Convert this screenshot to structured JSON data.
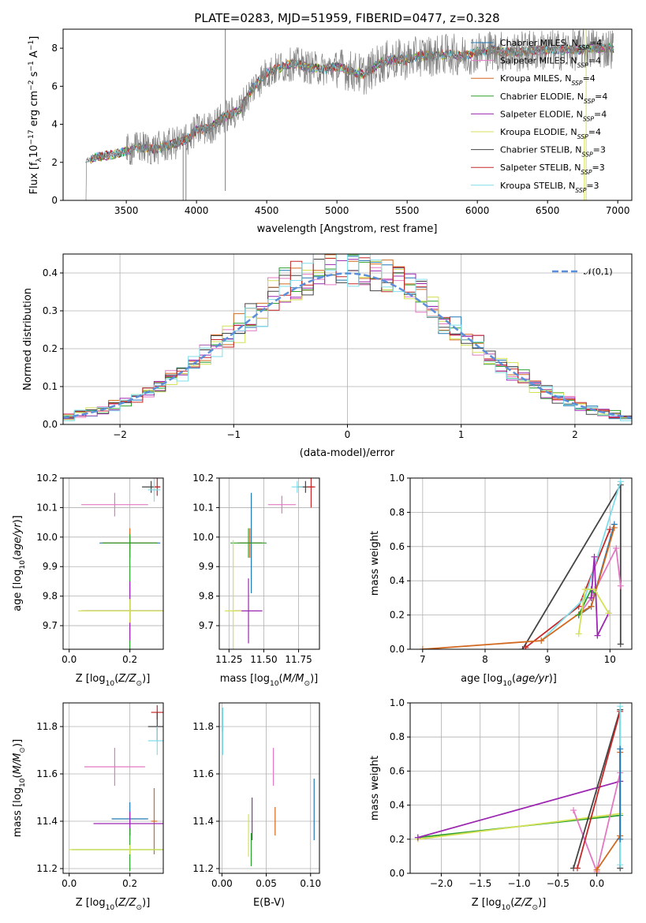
{
  "colors": {
    "chabrier_miles": "#1f77b4",
    "salpeter_miles": "#e377c2",
    "kroupa_miles": "#d2691e",
    "chabrier_elodie": "#2ca02c",
    "salpeter_elodie": "#9c27b0",
    "kroupa_elodie": "#d4e157",
    "chabrier_stelib": "#444444",
    "salpeter_stelib": "#c62828",
    "kroupa_stelib": "#80deea",
    "data": "#808080",
    "normal": "#5b8fd9"
  },
  "chart_data": [
    {
      "id": "spectrum",
      "type": "line",
      "title": "PLATE=0283, MJD=51959, FIBERID=0477, z=0.328",
      "xlabel": "wavelength [Angstrom, rest frame]",
      "ylabel": "Flux [f_λ 10^-17 erg cm^-2 s^-1 A^-1]",
      "xlim": [
        3050,
        7100
      ],
      "ylim": [
        0,
        9
      ],
      "xticks": [
        "3500",
        "4000",
        "4500",
        "5000",
        "5500",
        "6000",
        "6500",
        "7000"
      ],
      "yticks": [
        "0",
        "2",
        "4",
        "6",
        "8"
      ],
      "grid": false,
      "legend_position": "top-right",
      "legend": [
        "Chabrier MILES, N_SSP=4",
        "Salpeter MILES, N_SSP=4",
        "Kroupa MILES, N_SSP=4",
        "Chabrier ELODIE, N_SSP=4",
        "Salpeter ELODIE, N_SSP=4",
        "Kroupa ELODIE, N_SSP=4",
        "Chabrier STELIB, N_SSP=3",
        "Salpeter STELIB, N_SSP=3",
        "Kroupa STELIB, N_SSP=3"
      ],
      "data_range": [
        3210,
        6970
      ],
      "continuum": [
        [
          3210,
          2.1
        ],
        [
          3300,
          2.3
        ],
        [
          3400,
          2.4
        ],
        [
          3500,
          2.6
        ],
        [
          3600,
          2.8
        ],
        [
          3700,
          2.7
        ],
        [
          3800,
          2.9
        ],
        [
          3900,
          3.1
        ],
        [
          3950,
          3.3
        ],
        [
          4000,
          3.7
        ],
        [
          4100,
          3.8
        ],
        [
          4200,
          4.4
        ],
        [
          4300,
          4.7
        ],
        [
          4400,
          5.9
        ],
        [
          4500,
          6.7
        ],
        [
          4600,
          7.0
        ],
        [
          4700,
          7.2
        ],
        [
          4800,
          7.0
        ],
        [
          4900,
          6.9
        ],
        [
          5000,
          7.0
        ],
        [
          5100,
          6.8
        ],
        [
          5200,
          6.6
        ],
        [
          5300,
          7.2
        ],
        [
          5400,
          7.4
        ],
        [
          5500,
          7.4
        ],
        [
          5600,
          7.6
        ],
        [
          5700,
          7.6
        ],
        [
          5800,
          7.7
        ],
        [
          5900,
          7.6
        ],
        [
          6000,
          7.8
        ],
        [
          6100,
          7.9
        ],
        [
          6200,
          7.8
        ],
        [
          6300,
          7.8
        ],
        [
          6400,
          7.9
        ],
        [
          6500,
          7.9
        ],
        [
          6600,
          7.9
        ],
        [
          6700,
          7.9
        ],
        [
          6800,
          8.0
        ],
        [
          6970,
          8.0
        ]
      ]
    },
    {
      "id": "residuals",
      "type": "line",
      "xlabel": "(data-model)/error",
      "ylabel": "Normed distribution",
      "xlim": [
        -2.5,
        2.5
      ],
      "ylim": [
        0,
        0.45
      ],
      "xticks": [
        "−2",
        "−1",
        "0",
        "1",
        "2"
      ],
      "yticks": [
        "0.0",
        "0.1",
        "0.2",
        "0.3",
        "0.4"
      ],
      "grid": true,
      "legend_position": "top-right",
      "legend": [
        "𝒩(0,1)"
      ],
      "bin_width": 0.1
    },
    {
      "id": "age_vs_Z",
      "type": "scatter",
      "xlabel": "Z [log10(Z/Z⊙)]",
      "ylabel": "age  [log10(age/yr)]",
      "xlim": [
        -0.02,
        0.31
      ],
      "ylim": [
        9.62,
        10.2
      ],
      "xticks": [
        "0.0",
        "0.2"
      ],
      "yticks": [
        "9.7",
        "9.8",
        "9.9",
        "10.0",
        "10.1",
        "10.2"
      ],
      "grid": true,
      "points": [
        {
          "x": 0.27,
          "y": 10.17,
          "xerr": 0.03,
          "yerr": 0.02,
          "model": "chabrier_stelib"
        },
        {
          "x": 0.29,
          "y": 10.17,
          "xerr": 0.01,
          "yerr": 0.03,
          "model": "salpeter_stelib"
        },
        {
          "x": 0.28,
          "y": 10.16,
          "xerr": 0.02,
          "yerr": 0.04,
          "model": "kroupa_stelib"
        },
        {
          "x": 0.15,
          "y": 10.11,
          "xerr": 0.11,
          "yerr": 0.04,
          "model": "salpeter_miles"
        },
        {
          "x": 0.2,
          "y": 9.98,
          "xerr": 0.1,
          "yerr": 0.02,
          "model": "chabrier_miles"
        },
        {
          "x": 0.2,
          "y": 9.98,
          "xerr": 0.09,
          "yerr": 0.05,
          "model": "kroupa_miles"
        },
        {
          "x": 0.2,
          "y": 9.98,
          "xerr": 0.09,
          "yerr": 0.03,
          "model": "chabrier_elodie"
        },
        {
          "x": 0.2,
          "y": 9.75,
          "xerr": 0.15,
          "yerr": 0.2,
          "model": "chabrier_elodie"
        },
        {
          "x": 0.2,
          "y": 9.75,
          "xerr": 0.16,
          "yerr": 0.1,
          "model": "salpeter_elodie"
        },
        {
          "x": 0.2,
          "y": 9.75,
          "xerr": 0.17,
          "yerr": 0.04,
          "model": "kroupa_elodie"
        }
      ]
    },
    {
      "id": "age_vs_mass",
      "type": "scatter",
      "xlabel": "mass [log10(M/M⊙)]",
      "ylabel": "",
      "xlim": [
        11.18,
        11.9
      ],
      "ylim": [
        9.62,
        10.2
      ],
      "xticks": [
        "11.25",
        "11.50",
        "11.75"
      ],
      "yticks": [
        "9.7",
        "9.8",
        "9.9",
        "10.0",
        "10.1",
        "10.2"
      ],
      "grid": true,
      "points": [
        {
          "x": 11.8,
          "y": 10.17,
          "xerr": 0.06,
          "yerr": 0.02,
          "model": "chabrier_stelib"
        },
        {
          "x": 11.84,
          "y": 10.17,
          "xerr": 0.03,
          "yerr": 0.07,
          "model": "salpeter_stelib"
        },
        {
          "x": 11.74,
          "y": 10.17,
          "xerr": 0.04,
          "yerr": 0.02,
          "model": "kroupa_stelib"
        },
        {
          "x": 11.63,
          "y": 10.11,
          "xerr": 0.1,
          "yerr": 0.03,
          "model": "salpeter_miles"
        },
        {
          "x": 11.41,
          "y": 9.98,
          "xerr": 0.08,
          "yerr": 0.17,
          "model": "chabrier_miles"
        },
        {
          "x": 11.4,
          "y": 9.98,
          "xerr": 0.09,
          "yerr": 0.05,
          "model": "kroupa_miles"
        },
        {
          "x": 11.39,
          "y": 9.98,
          "xerr": 0.13,
          "yerr": 0.05,
          "model": "chabrier_elodie"
        },
        {
          "x": 11.39,
          "y": 9.75,
          "xerr": 0.1,
          "yerr": 0.11,
          "model": "salpeter_elodie"
        },
        {
          "x": 11.28,
          "y": 9.75,
          "xerr": 0.06,
          "yerr": 0.24,
          "model": "kroupa_elodie"
        }
      ]
    },
    {
      "id": "massweight_vs_age",
      "type": "line",
      "xlabel": "age  [log10(age/yr)]",
      "ylabel": "mass weight",
      "xlim": [
        6.8,
        10.35
      ],
      "ylim": [
        0,
        1
      ],
      "xticks": [
        "7",
        "8",
        "9",
        "10"
      ],
      "yticks": [
        "0.0",
        "0.2",
        "0.4",
        "0.6",
        "0.8",
        "1.0"
      ],
      "grid": true,
      "series": [
        {
          "model": "chabrier_stelib",
          "x": [
            8.6,
            10.17,
            10.17
          ],
          "y": [
            0,
            0.96,
            0.03
          ]
        },
        {
          "model": "salpeter_stelib",
          "x": [
            8.65,
            9.5,
            10.0
          ],
          "y": [
            0.01,
            0.25,
            0.7
          ]
        },
        {
          "model": "kroupa_stelib",
          "x": [
            8.9,
            9.6,
            10.17
          ],
          "y": [
            0.05,
            0.3,
            0.98
          ]
        },
        {
          "model": "salpeter_miles",
          "x": [
            9.5,
            9.7,
            10.1,
            10.17
          ],
          "y": [
            0.2,
            0.3,
            0.59,
            0.37
          ]
        },
        {
          "model": "chabrier_miles",
          "x": [
            9.5,
            9.7,
            10.07
          ],
          "y": [
            0.2,
            0.25,
            0.73
          ]
        },
        {
          "model": "kroupa_miles",
          "x": [
            7.0,
            8.9,
            9.55,
            9.7,
            10.07
          ],
          "y": [
            0,
            0.05,
            0.22,
            0.25,
            0.71
          ]
        },
        {
          "model": "chabrier_elodie",
          "x": [
            9.5,
            9.7,
            9.75
          ],
          "y": [
            0.2,
            0.35,
            0.33
          ]
        },
        {
          "model": "salpeter_elodie",
          "x": [
            9.7,
            9.75,
            9.8,
            9.98
          ],
          "y": [
            0.3,
            0.54,
            0.08,
            0.21
          ]
        },
        {
          "model": "kroupa_elodie",
          "x": [
            9.5,
            9.6,
            9.75,
            9.98
          ],
          "y": [
            0.09,
            0.35,
            0.35,
            0.21
          ]
        }
      ]
    },
    {
      "id": "mass_vs_Z",
      "type": "scatter",
      "xlabel": "Z [log10(Z/Z⊙)]",
      "ylabel": "mass [log10(M/M⊙)]",
      "xlim": [
        -0.02,
        0.31
      ],
      "ylim": [
        11.18,
        11.9
      ],
      "xticks": [
        "0.0",
        "0.2"
      ],
      "yticks": [
        "11.2",
        "11.4",
        "11.6",
        "11.8"
      ],
      "grid": true,
      "points": [
        {
          "x": 0.29,
          "y": 11.86,
          "xerr": 0.02,
          "yerr": 0.03,
          "model": "salpeter_stelib"
        },
        {
          "x": 0.29,
          "y": 11.8,
          "xerr": 0.03,
          "yerr": 0.06,
          "model": "chabrier_stelib"
        },
        {
          "x": 0.29,
          "y": 11.74,
          "xerr": 0.03,
          "yerr": 0.06,
          "model": "kroupa_stelib"
        },
        {
          "x": 0.15,
          "y": 11.63,
          "xerr": 0.1,
          "yerr": 0.08,
          "model": "salpeter_miles"
        },
        {
          "x": 0.2,
          "y": 11.41,
          "xerr": 0.06,
          "yerr": 0.07,
          "model": "chabrier_miles"
        },
        {
          "x": 0.28,
          "y": 11.4,
          "xerr": 0.01,
          "yerr": 0.14,
          "model": "kroupa_miles"
        },
        {
          "x": 0.2,
          "y": 11.39,
          "xerr": 0.12,
          "yerr": 0.05,
          "model": "salpeter_elodie"
        },
        {
          "x": 0.2,
          "y": 11.28,
          "xerr": 0.19,
          "yerr": 0.09,
          "model": "chabrier_elodie"
        },
        {
          "x": 0.2,
          "y": 11.28,
          "xerr": 0.2,
          "yerr": 0.02,
          "model": "kroupa_elodie"
        }
      ]
    },
    {
      "id": "mass_vs_ebv",
      "type": "scatter",
      "xlabel": "E(B-V)",
      "ylabel": "",
      "xlim": [
        -0.003,
        0.11
      ],
      "ylim": [
        11.18,
        11.9
      ],
      "xticks": [
        "0.00",
        "0.05",
        "0.10"
      ],
      "yticks": [
        "11.2",
        "11.4",
        "11.6",
        "11.8"
      ],
      "grid": true,
      "points": [
        {
          "x": 0.001,
          "y": 11.83,
          "xerr": 0,
          "yerr": 0.05,
          "model": "salpeter_stelib"
        },
        {
          "x": 0.001,
          "y": 11.78,
          "xerr": 0,
          "yerr": 0.1,
          "model": "kroupa_stelib"
        },
        {
          "x": 0.058,
          "y": 11.63,
          "xerr": 0,
          "yerr": 0.08,
          "model": "salpeter_miles"
        },
        {
          "x": 0.06,
          "y": 11.4,
          "xerr": 0,
          "yerr": 0.06,
          "model": "kroupa_miles"
        },
        {
          "x": 0.104,
          "y": 11.45,
          "xerr": 0,
          "yerr": 0.13,
          "model": "chabrier_miles"
        },
        {
          "x": 0.034,
          "y": 11.41,
          "xerr": 0,
          "yerr": 0.09,
          "model": "salpeter_elodie"
        },
        {
          "x": 0.033,
          "y": 11.28,
          "xerr": 0,
          "yerr": 0.07,
          "model": "chabrier_elodie"
        },
        {
          "x": 0.03,
          "y": 11.34,
          "xerr": 0,
          "yerr": 0.09,
          "model": "kroupa_elodie"
        }
      ]
    },
    {
      "id": "massweight_vs_Z",
      "type": "line",
      "xlabel": "Z [log10(Z/Z⊙)]",
      "ylabel": "mass weight",
      "xlim": [
        -2.4,
        0.45
      ],
      "ylim": [
        0,
        1
      ],
      "xticks": [
        "−2.0",
        "−1.5",
        "−1.0",
        "−0.5",
        "0.0"
      ],
      "yticks": [
        "0.0",
        "0.2",
        "0.4",
        "0.6",
        "0.8",
        "1.0"
      ],
      "grid": true,
      "series": [
        {
          "model": "chabrier_elodie",
          "x": [
            -2.3,
            0.3
          ],
          "y": [
            0.21,
            0.34
          ]
        },
        {
          "model": "kroupa_elodie",
          "x": [
            -2.3,
            0.3
          ],
          "y": [
            0.2,
            0.35
          ]
        },
        {
          "model": "salpeter_elodie",
          "x": [
            -2.3,
            0.3
          ],
          "y": [
            0.21,
            0.54
          ]
        },
        {
          "model": "salpeter_miles",
          "x": [
            -0.3,
            0.0,
            0.3
          ],
          "y": [
            0.37,
            0.01,
            0.59
          ]
        },
        {
          "model": "kroupa_miles",
          "x": [
            0.0,
            0.3,
            0.3
          ],
          "y": [
            0.02,
            0.22,
            0.71
          ]
        },
        {
          "model": "chabrier_stelib",
          "x": [
            -0.3,
            0.3,
            0.3
          ],
          "y": [
            0.03,
            0.96,
            0.03
          ]
        },
        {
          "model": "salpeter_stelib",
          "x": [
            -0.25,
            0.3
          ],
          "y": [
            0.03,
            0.95
          ]
        },
        {
          "model": "kroupa_stelib",
          "x": [
            0.3,
            0.3
          ],
          "y": [
            0.05,
            0.98
          ]
        },
        {
          "model": "chabrier_miles",
          "x": [
            0.3,
            0.3
          ],
          "y": [
            0.2,
            0.73
          ]
        }
      ]
    }
  ]
}
